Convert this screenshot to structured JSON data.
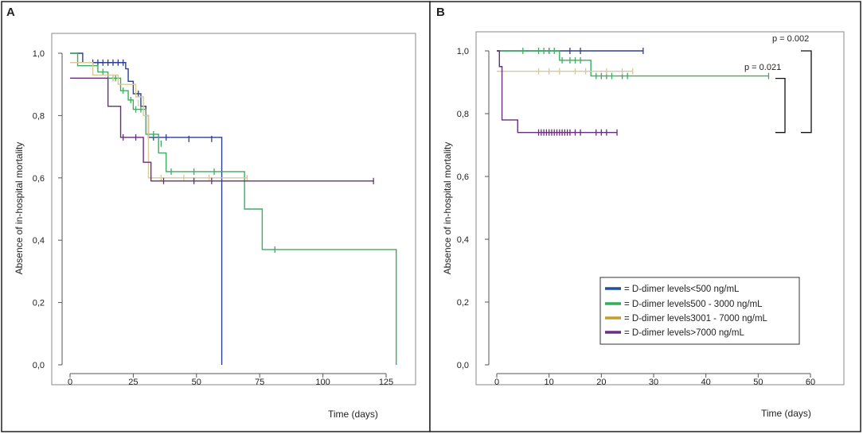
{
  "chart_data": [
    {
      "type": "line",
      "subtype": "kaplan-meier",
      "panel_label": "A",
      "xlabel": "Time (days)",
      "ylabel": "Absence of in-hospital mortality",
      "xlim": [
        -5,
        140
      ],
      "ylim": [
        0,
        1.05
      ],
      "xticks": [
        0,
        25,
        50,
        75,
        100,
        125
      ],
      "xtick_labels": [
        "0",
        "25",
        "50",
        "75",
        "100",
        "125"
      ],
      "yticks": [
        0.0,
        0.2,
        0.4,
        0.6,
        0.8,
        1.0
      ],
      "ytick_labels": [
        "0,0",
        "0,2",
        "0,4",
        "0,6",
        "0,8",
        "1,0"
      ],
      "series": [
        {
          "name": "<500 ng/mL",
          "color": "#2c3f8f",
          "steps": [
            [
              0,
              1.0
            ],
            [
              5,
              0.97
            ],
            [
              22,
              0.95
            ],
            [
              23,
              0.91
            ],
            [
              25,
              0.87
            ],
            [
              28,
              0.83
            ],
            [
              30,
              0.8
            ],
            [
              31,
              0.73
            ],
            [
              60,
              0.73
            ],
            [
              60,
              0.0
            ]
          ],
          "censors": [
            [
              9,
              0.97
            ],
            [
              11,
              0.97
            ],
            [
              13,
              0.97
            ],
            [
              15,
              0.97
            ],
            [
              17,
              0.97
            ],
            [
              19,
              0.97
            ],
            [
              21,
              0.97
            ],
            [
              27,
              0.87
            ],
            [
              33,
              0.73
            ],
            [
              38,
              0.73
            ],
            [
              47,
              0.725
            ],
            [
              56,
              0.725
            ]
          ]
        },
        {
          "name": "500 - 3000 ng/mL",
          "color": "#3aad5e",
          "steps": [
            [
              0,
              1.0
            ],
            [
              3,
              0.96
            ],
            [
              11,
              0.94
            ],
            [
              15,
              0.92
            ],
            [
              20,
              0.88
            ],
            [
              23,
              0.85
            ],
            [
              25,
              0.82
            ],
            [
              30,
              0.74
            ],
            [
              35,
              0.68
            ],
            [
              38,
              0.62
            ],
            [
              69,
              0.62
            ],
            [
              69,
              0.5
            ],
            [
              76,
              0.5
            ],
            [
              76,
              0.37
            ],
            [
              129,
              0.37
            ],
            [
              129,
              0.0
            ]
          ],
          "censors": [
            [
              13,
              0.94
            ],
            [
              17,
              0.92
            ],
            [
              18,
              0.92
            ],
            [
              21,
              0.88
            ],
            [
              24,
              0.85
            ],
            [
              26,
              0.82
            ],
            [
              28,
              0.82
            ],
            [
              31,
              0.74
            ],
            [
              33,
              0.74
            ],
            [
              36,
              0.71
            ],
            [
              40,
              0.62
            ],
            [
              49,
              0.62
            ],
            [
              57,
              0.62
            ],
            [
              81,
              0.37
            ]
          ]
        },
        {
          "name": "3001 - 7000 ng/mL",
          "color": "#d8c998",
          "steps": [
            [
              0,
              0.97
            ],
            [
              9,
              0.93
            ],
            [
              15,
              0.93
            ],
            [
              19,
              0.9
            ],
            [
              26,
              0.86
            ],
            [
              29,
              0.8
            ],
            [
              31,
              0.6
            ],
            [
              70,
              0.6
            ]
          ],
          "censors": [
            [
              17,
              0.92
            ],
            [
              27,
              0.84
            ],
            [
              36,
              0.6
            ],
            [
              45,
              0.6
            ],
            [
              55,
              0.6
            ],
            [
              70,
              0.6
            ]
          ]
        },
        {
          "name": ">7000 ng/mL",
          "color": "#6a2d7b",
          "steps": [
            [
              0,
              0.92
            ],
            [
              15,
              0.92
            ],
            [
              15,
              0.83
            ],
            [
              20,
              0.83
            ],
            [
              20,
              0.73
            ],
            [
              29,
              0.73
            ],
            [
              29,
              0.65
            ],
            [
              32,
              0.65
            ],
            [
              32,
              0.59
            ],
            [
              120,
              0.59
            ]
          ],
          "censors": [
            [
              21,
              0.73
            ],
            [
              26,
              0.73
            ],
            [
              37,
              0.59
            ],
            [
              49,
              0.59
            ],
            [
              56,
              0.59
            ],
            [
              120,
              0.59
            ]
          ]
        }
      ]
    },
    {
      "type": "line",
      "subtype": "kaplan-meier",
      "panel_label": "B",
      "xlabel": "Time (days)",
      "ylabel": "Absence of in-hospital mortality",
      "xlim": [
        -4,
        64
      ],
      "ylim": [
        0,
        1.05
      ],
      "xticks": [
        0,
        10,
        20,
        30,
        40,
        50,
        60
      ],
      "xtick_labels": [
        "0",
        "10",
        "20",
        "30",
        "40",
        "50",
        "60"
      ],
      "yticks": [
        0.0,
        0.2,
        0.4,
        0.6,
        0.8,
        1.0
      ],
      "ytick_labels": [
        "0,0",
        "0,2",
        "0,4",
        "0,6",
        "0,8",
        "1,0"
      ],
      "series": [
        {
          "name": "<500 ng/mL",
          "color": "#2c3f8f",
          "steps": [
            [
              0,
              1.0
            ],
            [
              28,
              1.0
            ]
          ],
          "censors": [
            [
              10,
              1.0
            ],
            [
              14,
              1.0
            ],
            [
              16,
              1.0
            ],
            [
              28,
              1.0
            ]
          ]
        },
        {
          "name": "500 - 3000 ng/mL",
          "color": "#3aad5e",
          "steps": [
            [
              0,
              1.0
            ],
            [
              12,
              1.0
            ],
            [
              12,
              0.97
            ],
            [
              18,
              0.97
            ],
            [
              18,
              0.92
            ],
            [
              52,
              0.92
            ]
          ],
          "censors": [
            [
              5,
              1.0
            ],
            [
              8,
              1.0
            ],
            [
              9,
              1.0
            ],
            [
              10,
              1.0
            ],
            [
              11,
              1.0
            ],
            [
              12.5,
              0.97
            ],
            [
              14,
              0.97
            ],
            [
              15,
              0.97
            ],
            [
              16,
              0.97
            ],
            [
              19,
              0.92
            ],
            [
              20,
              0.92
            ],
            [
              21,
              0.92
            ],
            [
              22,
              0.92
            ],
            [
              24,
              0.92
            ],
            [
              25,
              0.92
            ],
            [
              52,
              0.92
            ]
          ]
        },
        {
          "name": "3001 - 7000 ng/mL",
          "color": "#d8c998",
          "steps": [
            [
              0,
              0.935
            ],
            [
              26,
              0.935
            ]
          ],
          "censors": [
            [
              8,
              0.935
            ],
            [
              10,
              0.935
            ],
            [
              12,
              0.935
            ],
            [
              15,
              0.935
            ],
            [
              17,
              0.935
            ],
            [
              21,
              0.935
            ],
            [
              24,
              0.935
            ],
            [
              26,
              0.935
            ]
          ]
        },
        {
          "name": ">7000 ng/mL",
          "color": "#6a2d7b",
          "steps": [
            [
              0,
              1.0
            ],
            [
              0.5,
              1.0
            ],
            [
              0.5,
              0.95
            ],
            [
              1,
              0.95
            ],
            [
              1,
              0.78
            ],
            [
              4,
              0.78
            ],
            [
              4,
              0.74
            ],
            [
              23,
              0.74
            ]
          ],
          "censors": [
            [
              8,
              0.74
            ],
            [
              8.5,
              0.74
            ],
            [
              9,
              0.74
            ],
            [
              9.5,
              0.74
            ],
            [
              10,
              0.74
            ],
            [
              10.5,
              0.74
            ],
            [
              11,
              0.74
            ],
            [
              11.5,
              0.74
            ],
            [
              12,
              0.74
            ],
            [
              12.5,
              0.74
            ],
            [
              13,
              0.74
            ],
            [
              13.5,
              0.74
            ],
            [
              14,
              0.74
            ],
            [
              15,
              0.74
            ],
            [
              16,
              0.74
            ],
            [
              19,
              0.74
            ],
            [
              20,
              0.74
            ],
            [
              21,
              0.74
            ],
            [
              23,
              0.74
            ]
          ]
        }
      ],
      "legend": {
        "placement": "bottom-right",
        "entries": [
          {
            "text": "= D-dimer levels<500 ng/mL",
            "color": "#1f4e9c"
          },
          {
            "text": "= D-dimer levels500 - 3000 ng/mL",
            "color": "#2fb055"
          },
          {
            "text": "= D-dimer levels3001 - 7000 ng/mL",
            "color": "#c99a2e"
          },
          {
            "text": "= D-dimer levels>7000 ng/mL",
            "color": "#6b2c86"
          }
        ]
      },
      "annotations": [
        {
          "text": "p = 0.002",
          "bracket_from": 1.0,
          "bracket_to": 0.74
        },
        {
          "text": "p = 0.021",
          "bracket_from": 0.92,
          "bracket_to": 0.74
        }
      ]
    }
  ]
}
